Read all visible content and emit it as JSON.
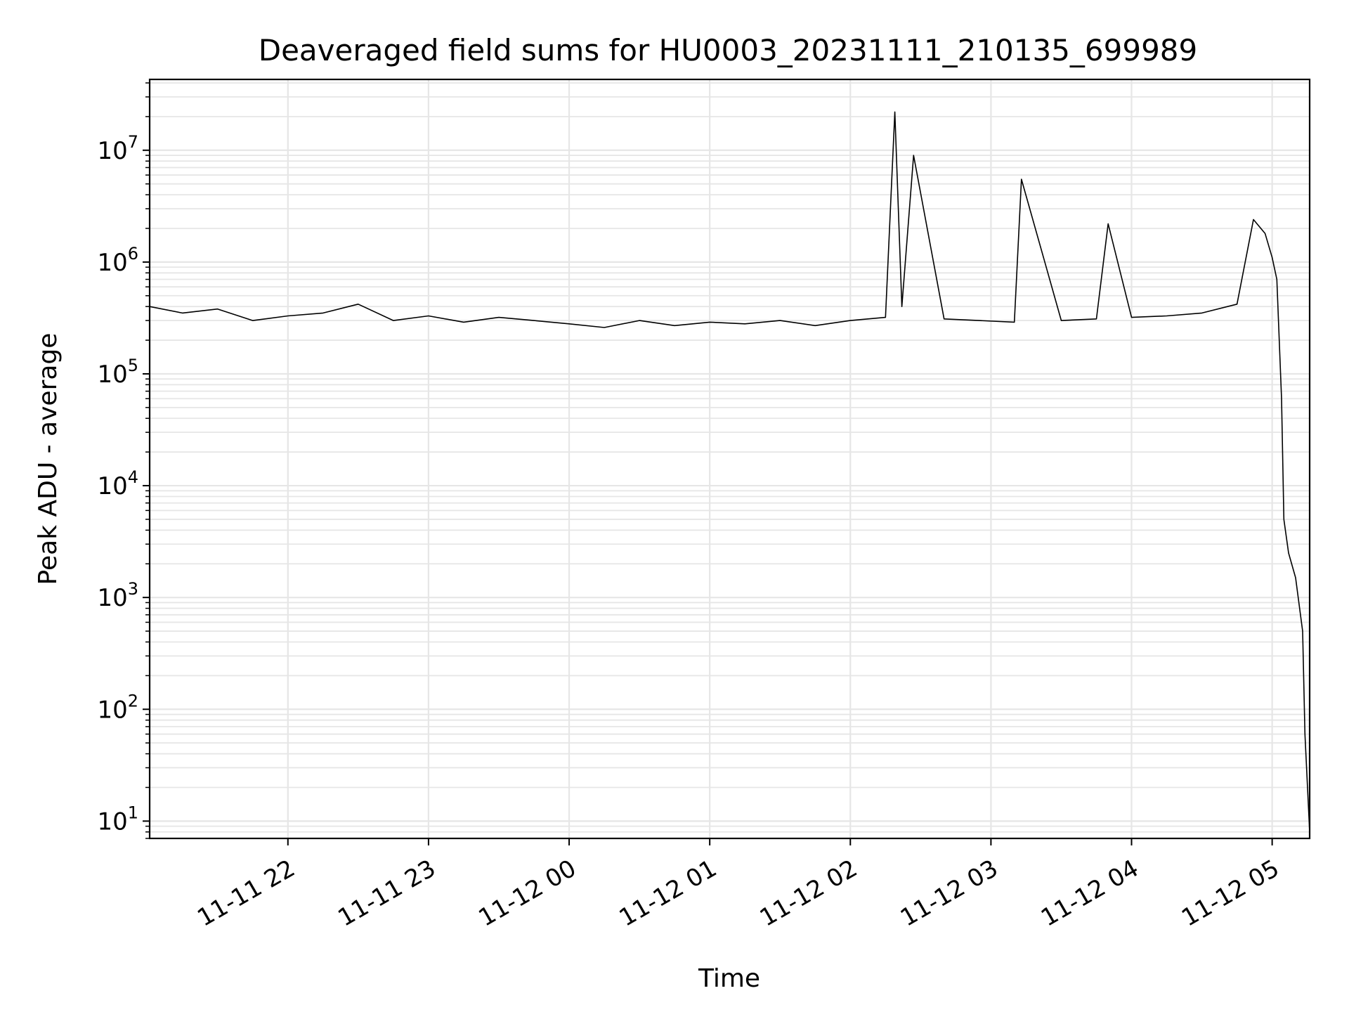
{
  "chart_data": {
    "type": "line",
    "title": "Deaveraged field sums for HU0003_20231111_210135_699989",
    "xlabel": "Time",
    "ylabel": "Peak ADU - average",
    "y_scale": "log",
    "grid": true,
    "line_color": "#000000",
    "x_range": [
      "2023-11-11 21:01",
      "2023-11-12 05:16"
    ],
    "ylim": [
      7,
      43000000
    ],
    "x_ticks": [
      "11-11 22",
      "11-11 23",
      "11-12 00",
      "11-12 01",
      "11-12 02",
      "11-12 03",
      "11-12 04",
      "11-12 05"
    ],
    "y_ticks": [
      {
        "value": 10,
        "mant": "10",
        "exp": "1"
      },
      {
        "value": 100,
        "mant": "10",
        "exp": "2"
      },
      {
        "value": 1000,
        "mant": "10",
        "exp": "3"
      },
      {
        "value": 10000,
        "mant": "10",
        "exp": "4"
      },
      {
        "value": 100000,
        "mant": "10",
        "exp": "5"
      },
      {
        "value": 1000000,
        "mant": "10",
        "exp": "6"
      },
      {
        "value": 10000000,
        "mant": "10",
        "exp": "7"
      }
    ],
    "series": [
      {
        "x": [
          "2023-11-11 21:01",
          "2023-11-11 21:15",
          "2023-11-11 21:30",
          "2023-11-11 21:45",
          "2023-11-11 22:00",
          "2023-11-11 22:15",
          "2023-11-11 22:30",
          "2023-11-11 22:45",
          "2023-11-11 23:00",
          "2023-11-11 23:15",
          "2023-11-11 23:30",
          "2023-11-11 23:45",
          "2023-11-12 00:00",
          "2023-11-12 00:15",
          "2023-11-12 00:30",
          "2023-11-12 00:45",
          "2023-11-12 01:00",
          "2023-11-12 01:15",
          "2023-11-12 01:30",
          "2023-11-12 01:45",
          "2023-11-12 02:00",
          "2023-11-12 02:15",
          "2023-11-12 02:19",
          "2023-11-12 02:22",
          "2023-11-12 02:27",
          "2023-11-12 02:40",
          "2023-11-12 02:55",
          "2023-11-12 03:10",
          "2023-11-12 03:13",
          "2023-11-12 03:30",
          "2023-11-12 03:45",
          "2023-11-12 03:50",
          "2023-11-12 04:00",
          "2023-11-12 04:15",
          "2023-11-12 04:30",
          "2023-11-12 04:45",
          "2023-11-12 04:52",
          "2023-11-12 04:57",
          "2023-11-12 05:00",
          "2023-11-12 05:02",
          "2023-11-12 05:04",
          "2023-11-12 05:05",
          "2023-11-12 05:07",
          "2023-11-12 05:10",
          "2023-11-12 05:13",
          "2023-11-12 05:14",
          "2023-11-12 05:16"
        ],
        "y": [
          400000,
          350000,
          380000,
          300000,
          330000,
          350000,
          420000,
          300000,
          330000,
          290000,
          320000,
          300000,
          280000,
          260000,
          300000,
          270000,
          290000,
          280000,
          300000,
          270000,
          300000,
          320000,
          22000000,
          400000,
          9000000,
          310000,
          300000,
          290000,
          5500000,
          300000,
          310000,
          2200000,
          320000,
          330000,
          350000,
          420000,
          2400000,
          1800000,
          1100000,
          700000,
          60000,
          5000,
          2500,
          1500,
          500,
          60,
          8
        ]
      }
    ]
  }
}
